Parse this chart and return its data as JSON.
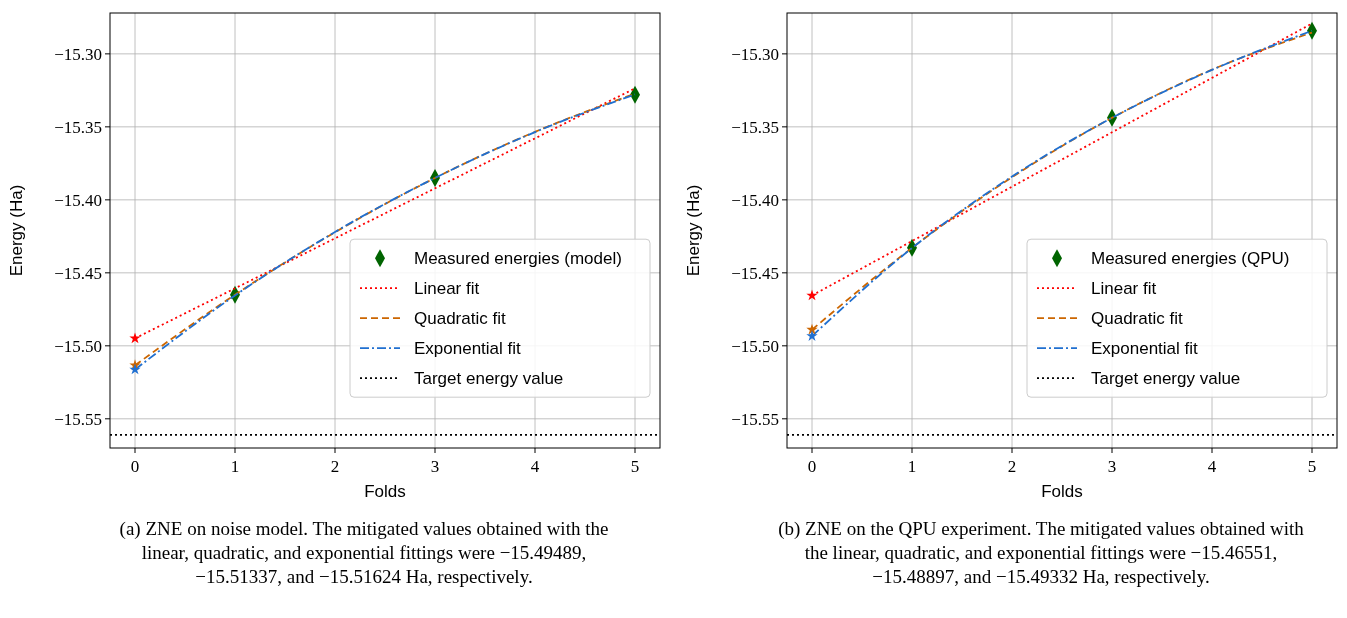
{
  "chart_data": [
    {
      "type": "line",
      "xlabel": "Folds",
      "ylabel": "Energy (Ha)",
      "xlim": [
        -0.25,
        5.25
      ],
      "xticks": [
        0,
        1,
        2,
        3,
        4,
        5
      ],
      "ylim": [
        -15.57,
        -15.272
      ],
      "yticks": [
        {
          "value": -15.55,
          "label": "−15.55"
        },
        {
          "value": -15.5,
          "label": "−15.50"
        },
        {
          "value": -15.45,
          "label": "−15.45"
        },
        {
          "value": -15.4,
          "label": "−15.40"
        },
        {
          "value": -15.35,
          "label": "−15.35"
        },
        {
          "value": -15.3,
          "label": "−15.30"
        }
      ],
      "grid": true,
      "legend": "right",
      "series": [
        {
          "name": "Measured energies (model)",
          "type": "scatter",
          "marker": "diamond",
          "color": "#006400",
          "x": [
            1,
            3,
            5
          ],
          "values": [
            -15.465,
            -15.385,
            -15.328
          ]
        },
        {
          "name": "Linear fit",
          "line_style": "dotted",
          "color": "#ff0000",
          "x": [
            0,
            5
          ],
          "values": [
            -15.49489,
            -15.3236
          ]
        },
        {
          "name": "Quadratic fit",
          "line_style": "dashed",
          "color": "#cc6600",
          "x": [
            0,
            1,
            2,
            3,
            4,
            5
          ],
          "values": [
            -15.51337,
            -15.465,
            -15.4222,
            -15.385,
            -15.3534,
            -15.3273
          ]
        },
        {
          "name": "Exponential fit",
          "line_style": "dashdot",
          "color": "#1f6fd0",
          "x": [
            0,
            1,
            2,
            3,
            4,
            5
          ],
          "values": [
            -15.51624,
            -15.4655,
            -15.422,
            -15.385,
            -15.3536,
            -15.3278
          ]
        },
        {
          "type": "scatter",
          "marker": "star",
          "colors": [
            "#ff0000",
            "#cc6600",
            "#1f6fd0"
          ],
          "x": [
            0,
            0,
            0
          ],
          "values": [
            -15.49489,
            -15.51337,
            -15.51624
          ]
        }
      ],
      "ref_lines": [
        {
          "axis": "y",
          "value": -15.561,
          "label": "Target energy value",
          "color": "#000000",
          "line_style": "dotted"
        }
      ],
      "annotations": [
        "(a) ZNE on noise model. The mitigated values obtained with the linear, quadratic, and exponential fittings were −15.49489, −15.51337, and −15.51624 Ha, respectively."
      ]
    },
    {
      "type": "line",
      "xlabel": "Folds",
      "ylabel": "Energy (Ha)",
      "xlim": [
        -0.25,
        5.25
      ],
      "xticks": [
        0,
        1,
        2,
        3,
        4,
        5
      ],
      "ylim": [
        -15.57,
        -15.272
      ],
      "yticks": [
        {
          "value": -15.55,
          "label": "−15.55"
        },
        {
          "value": -15.5,
          "label": "−15.50"
        },
        {
          "value": -15.45,
          "label": "−15.45"
        },
        {
          "value": -15.4,
          "label": "−15.40"
        },
        {
          "value": -15.35,
          "label": "−15.35"
        },
        {
          "value": -15.3,
          "label": "−15.30"
        }
      ],
      "grid": true,
      "legend": "right",
      "series": [
        {
          "name": "Measured energies (QPU)",
          "type": "scatter",
          "marker": "diamond",
          "color": "#006400",
          "x": [
            1,
            3,
            5
          ],
          "values": [
            -15.4329,
            -15.3438,
            -15.2842
          ]
        },
        {
          "name": "Linear fit",
          "line_style": "dotted",
          "color": "#ff0000",
          "x": [
            0,
            5
          ],
          "values": [
            -15.46551,
            -15.2792
          ]
        },
        {
          "name": "Quadratic fit",
          "line_style": "dashed",
          "color": "#cc6600",
          "x": [
            0,
            1,
            2,
            3,
            4,
            5
          ],
          "values": [
            -15.48897,
            -15.4329,
            -15.3845,
            -15.3438,
            -15.3108,
            -15.2854
          ]
        },
        {
          "name": "Exponential fit",
          "line_style": "dashdot",
          "color": "#1f6fd0",
          "x": [
            0,
            1,
            2,
            3,
            4,
            5
          ],
          "values": [
            -15.49332,
            -15.433,
            -15.384,
            -15.3438,
            -15.311,
            -15.2842
          ]
        },
        {
          "type": "scatter",
          "marker": "star",
          "colors": [
            "#ff0000",
            "#cc6600",
            "#1f6fd0"
          ],
          "x": [
            0,
            0,
            0
          ],
          "values": [
            -15.46551,
            -15.48897,
            -15.49332
          ]
        }
      ],
      "ref_lines": [
        {
          "axis": "y",
          "value": -15.561,
          "label": "Target energy value",
          "color": "#000000",
          "line_style": "dotted"
        }
      ],
      "annotations": [
        "(b) ZNE on the QPU experiment. The mitigated values obtained with the linear, quadratic, and exponential fittings were −15.46551, −15.48897, and −15.49332 Ha, respectively."
      ]
    }
  ]
}
